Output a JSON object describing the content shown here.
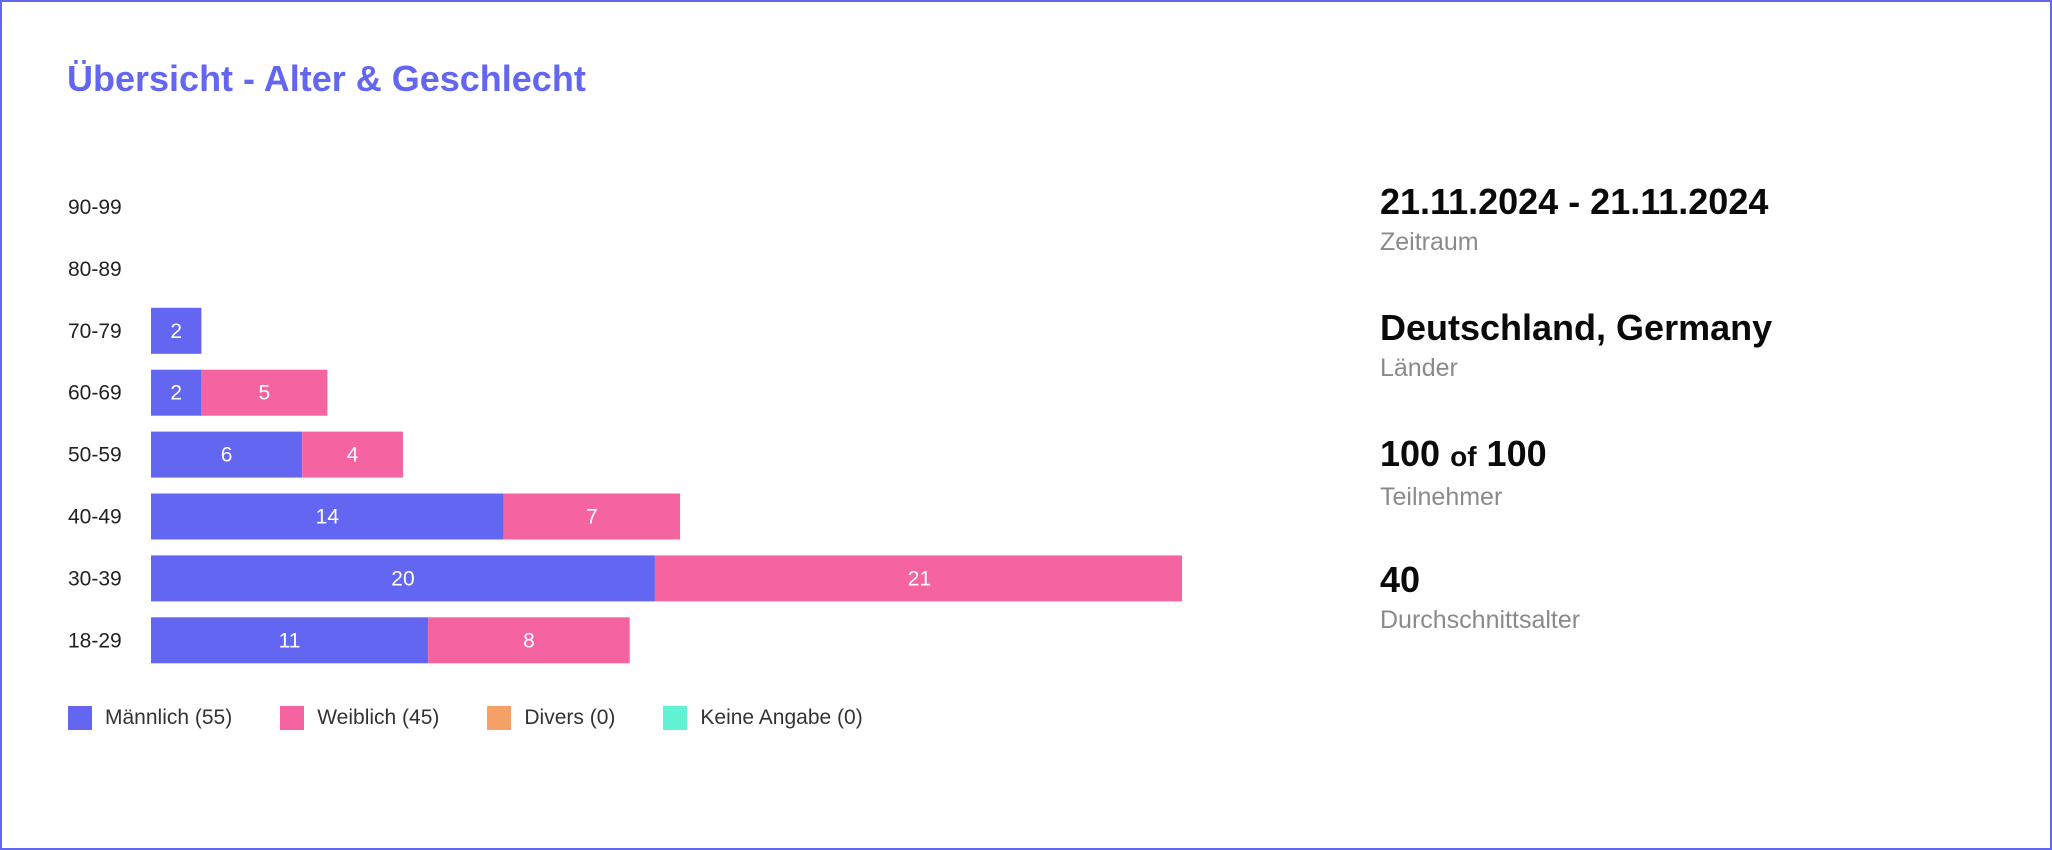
{
  "title": "Übersicht - Alter & Geschlecht",
  "chart_data": {
    "type": "bar",
    "orientation": "horizontal",
    "stacked": true,
    "categories": [
      "90-99",
      "80-89",
      "70-79",
      "60-69",
      "50-59",
      "40-49",
      "30-39",
      "18-29"
    ],
    "series": [
      {
        "name": "Männlich",
        "values": [
          0,
          0,
          2,
          2,
          6,
          14,
          20,
          11
        ],
        "color": "#6366f1"
      },
      {
        "name": "Weiblich",
        "values": [
          0,
          0,
          0,
          5,
          4,
          7,
          21,
          8
        ],
        "color": "#f564a1"
      },
      {
        "name": "Divers",
        "values": [
          0,
          0,
          0,
          0,
          0,
          0,
          0,
          0
        ],
        "color": "#f4a066"
      },
      {
        "name": "Keine Angabe",
        "values": [
          0,
          0,
          0,
          0,
          0,
          0,
          0,
          0
        ],
        "color": "#62f3d4"
      }
    ],
    "xlim": [
      0,
      41
    ],
    "grid": false,
    "legend_position": "bottom-left"
  },
  "legend": [
    {
      "label": "Männlich (55)",
      "color": "#6366f1"
    },
    {
      "label": "Weiblich (45)",
      "color": "#f564a1"
    },
    {
      "label": "Divers (0)",
      "color": "#f4a066"
    },
    {
      "label": "Keine Angabe (0)",
      "color": "#62f3d4"
    }
  ],
  "stats": {
    "period": {
      "value": "21.11.2024 - 21.11.2024",
      "label": "Zeitraum"
    },
    "countries": {
      "value": "Deutschland, Germany",
      "label": "Länder"
    },
    "participants": {
      "count": "100",
      "of": "of",
      "total": "100",
      "label": "Teilnehmer"
    },
    "average_age": {
      "value": "40",
      "label": "Durchschnittsalter"
    }
  }
}
